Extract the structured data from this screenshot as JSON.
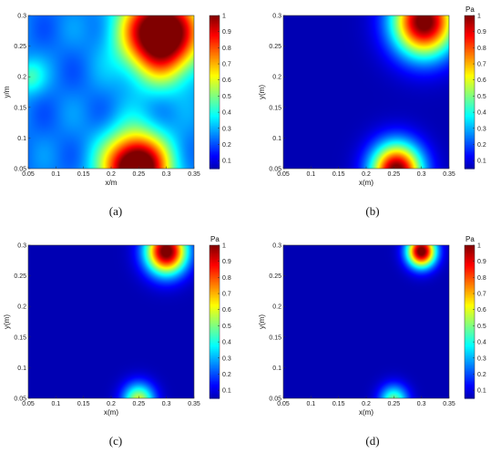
{
  "chart_data": [
    {
      "type": "heatmap",
      "caption": "(a)",
      "xlabel": "x/m",
      "ylabel": "y/m",
      "colorbar_label": "",
      "xlim": [
        0.05,
        0.35
      ],
      "ylim": [
        0.05,
        0.3
      ],
      "xticks": [
        "0.05",
        "0.1",
        "0.15",
        "0.2",
        "0.25",
        "0.3",
        "0.35"
      ],
      "yticks": [
        "0.05",
        "0.1",
        "0.15",
        "0.2",
        "0.25",
        "0.3"
      ],
      "colorbar_ticks": [
        "0.1",
        "0.2",
        "0.3",
        "0.4",
        "0.5",
        "0.6",
        "0.7",
        "0.8",
        "0.9",
        "1"
      ],
      "colormap": "jet",
      "background_level": 0.24,
      "sources": [
        {
          "x": 0.29,
          "y": 0.27,
          "peak": 1.0,
          "radius": 0.048
        },
        {
          "x": 0.245,
          "y": 0.05,
          "peak": 1.0,
          "radius": 0.04
        },
        {
          "x": 0.05,
          "y": 0.2,
          "peak": 0.2,
          "radius": 0.02
        }
      ]
    },
    {
      "type": "heatmap",
      "caption": "(b)",
      "xlabel": "x(m)",
      "ylabel": "y(m)",
      "colorbar_label": "Pa",
      "xlim": [
        0.05,
        0.35
      ],
      "ylim": [
        0.05,
        0.3
      ],
      "xticks": [
        "0.05",
        "0.1",
        "0.15",
        "0.2",
        "0.25",
        "0.3",
        "0.35"
      ],
      "yticks": [
        "0.05",
        "0.1",
        "0.15",
        "0.2",
        "0.25",
        "0.3"
      ],
      "colorbar_ticks": [
        "0.1",
        "0.2",
        "0.3",
        "0.4",
        "0.5",
        "0.6",
        "0.7",
        "0.8",
        "0.9",
        "1"
      ],
      "colormap": "jet",
      "background_level": 0.05,
      "sources": [
        {
          "x": 0.305,
          "y": 0.29,
          "peak": 1.0,
          "radius": 0.04
        },
        {
          "x": 0.255,
          "y": 0.045,
          "peak": 1.0,
          "radius": 0.032
        }
      ]
    },
    {
      "type": "heatmap",
      "caption": "(c)",
      "xlabel": "x(m)",
      "ylabel": "y(m)",
      "colorbar_label": "Pa",
      "xlim": [
        0.05,
        0.35
      ],
      "ylim": [
        0.05,
        0.3
      ],
      "xticks": [
        "0.05",
        "0.1",
        "0.15",
        "0.2",
        "0.25",
        "0.3",
        "0.35"
      ],
      "yticks": [
        "0.05",
        "0.1",
        "0.15",
        "0.2",
        "0.25",
        "0.3"
      ],
      "colorbar_ticks": [
        "0.1",
        "0.2",
        "0.3",
        "0.4",
        "0.5",
        "0.6",
        "0.7",
        "0.8",
        "0.9",
        "1"
      ],
      "colormap": "jet",
      "background_level": 0.05,
      "sources": [
        {
          "x": 0.3,
          "y": 0.29,
          "peak": 1.0,
          "radius": 0.026
        },
        {
          "x": 0.25,
          "y": 0.045,
          "peak": 0.55,
          "radius": 0.02
        }
      ]
    },
    {
      "type": "heatmap",
      "caption": "(d)",
      "xlabel": "x(m)",
      "ylabel": "y(m)",
      "colorbar_label": "Pa",
      "xlim": [
        0.05,
        0.35
      ],
      "ylim": [
        0.05,
        0.3
      ],
      "xticks": [
        "0.05",
        "0.1",
        "0.15",
        "0.2",
        "0.25",
        "0.3",
        "0.35"
      ],
      "yticks": [
        "0.05",
        "0.1",
        "0.15",
        "0.2",
        "0.25",
        "0.3"
      ],
      "colorbar_ticks": [
        "0.1",
        "0.2",
        "0.3",
        "0.4",
        "0.5",
        "0.6",
        "0.7",
        "0.8",
        "0.9",
        "1"
      ],
      "colormap": "jet",
      "background_level": 0.05,
      "sources": [
        {
          "x": 0.3,
          "y": 0.29,
          "peak": 1.0,
          "radius": 0.018
        },
        {
          "x": 0.25,
          "y": 0.045,
          "peak": 0.45,
          "radius": 0.018
        }
      ]
    }
  ]
}
